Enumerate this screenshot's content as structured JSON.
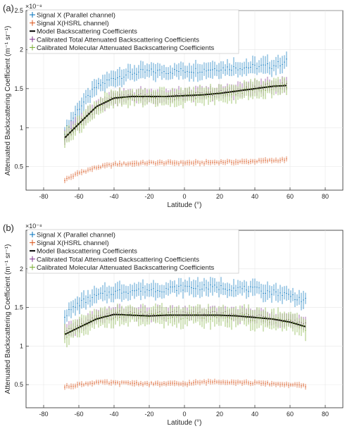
{
  "chart_data": [
    {
      "panel_label": "(a)",
      "type": "line",
      "xlabel": "Latitude (°)",
      "ylabel": "Attenuated Backscattering Coefficient (m⁻¹ sr⁻¹)",
      "y_exponent_label": "×10⁻⁸",
      "xlim": [
        -90,
        90
      ],
      "ylim": [
        0.2,
        2.5
      ],
      "x_ticks": [
        -80,
        -60,
        -40,
        -20,
        0,
        20,
        40,
        60,
        80
      ],
      "x_tick_labels": [
        "-80",
        "-60",
        "-40",
        "-20",
        "0",
        "20",
        "40",
        "60",
        "80"
      ],
      "y_ticks": [
        0.5,
        1,
        1.5,
        2,
        2.5
      ],
      "y_tick_labels": [
        "0.5",
        "1",
        "1.5",
        "2",
        "2.5"
      ],
      "grid": true,
      "legend_position": "top-left",
      "x_range": [
        -68,
        58
      ],
      "series": [
        {
          "name": "Signal X (Parallel channel)",
          "style": "errorbar",
          "color": "#0072BD",
          "x": [
            -68,
            -60,
            -50,
            -40,
            -30,
            -20,
            -10,
            0,
            10,
            20,
            30,
            40,
            50,
            58
          ],
          "y": [
            0.95,
            1.25,
            1.52,
            1.64,
            1.7,
            1.72,
            1.72,
            1.73,
            1.74,
            1.76,
            1.77,
            1.78,
            1.79,
            1.85
          ],
          "err": 0.12
        },
        {
          "name": "Signal X(HSRL channel)",
          "style": "errorbar",
          "color": "#D95319",
          "x": [
            -68,
            -60,
            -50,
            -40,
            -30,
            -20,
            -10,
            0,
            10,
            20,
            30,
            40,
            50,
            58
          ],
          "y": [
            0.33,
            0.42,
            0.49,
            0.53,
            0.54,
            0.55,
            0.55,
            0.55,
            0.55,
            0.56,
            0.56,
            0.57,
            0.58,
            0.59
          ],
          "err": 0.04
        },
        {
          "name": "Model Backscattering Coefficients",
          "style": "line",
          "color": "#000000",
          "x": [
            -68,
            -60,
            -50,
            -40,
            -30,
            -20,
            -10,
            0,
            10,
            20,
            30,
            40,
            50,
            58
          ],
          "y": [
            0.87,
            1.05,
            1.27,
            1.38,
            1.4,
            1.4,
            1.4,
            1.41,
            1.42,
            1.44,
            1.47,
            1.5,
            1.53,
            1.54
          ]
        },
        {
          "name": "Calibrated Total Attenuated Backscattering Coefficients",
          "style": "errorbar",
          "color": "#7E2F8E",
          "x": [
            -68,
            -60,
            -50,
            -40,
            -30,
            -20,
            -10,
            0,
            10,
            20,
            30,
            40,
            50,
            58
          ],
          "y": [
            0.89,
            1.06,
            1.28,
            1.39,
            1.41,
            1.41,
            1.41,
            1.42,
            1.43,
            1.45,
            1.48,
            1.51,
            1.54,
            1.55
          ],
          "err": 0.1
        },
        {
          "name": "Calibrated Molecular Attenuated Backscattering Coefficients",
          "style": "errorbar",
          "color": "#77AC30",
          "x": [
            -68,
            -60,
            -50,
            -40,
            -30,
            -20,
            -10,
            0,
            10,
            20,
            30,
            40,
            50,
            58
          ],
          "y": [
            0.87,
            1.04,
            1.26,
            1.37,
            1.39,
            1.39,
            1.39,
            1.4,
            1.41,
            1.43,
            1.46,
            1.49,
            1.52,
            1.53
          ],
          "err": 0.12
        }
      ]
    },
    {
      "panel_label": "(b)",
      "type": "line",
      "xlabel": "Latitude (°)",
      "ylabel": "Attenuated Backscattering Coefficient (m⁻¹ sr⁻¹)",
      "y_exponent_label": "×10⁻⁸",
      "xlim": [
        -90,
        90
      ],
      "ylim": [
        0.2,
        2.5
      ],
      "x_ticks": [
        -80,
        -60,
        -40,
        -20,
        0,
        20,
        40,
        60,
        80
      ],
      "x_tick_labels": [
        "-80",
        "-60",
        "-40",
        "-20",
        "0",
        "20",
        "40",
        "60",
        "80"
      ],
      "y_ticks": [
        0.5,
        1,
        1.5,
        2
      ],
      "y_tick_labels": [
        "0.5",
        "1",
        "1.5",
        "2"
      ],
      "grid": true,
      "legend_position": "top-left",
      "x_range": [
        -68,
        69
      ],
      "series": [
        {
          "name": "Signal X (Parallel channel)",
          "style": "errorbar",
          "color": "#0072BD",
          "x": [
            -68,
            -60,
            -50,
            -40,
            -30,
            -20,
            -10,
            0,
            10,
            20,
            30,
            40,
            50,
            60,
            69
          ],
          "y": [
            1.4,
            1.55,
            1.65,
            1.7,
            1.72,
            1.73,
            1.74,
            1.76,
            1.76,
            1.76,
            1.75,
            1.73,
            1.7,
            1.66,
            1.58
          ],
          "err": 0.12
        },
        {
          "name": "Signal X(HSRL channel)",
          "style": "errorbar",
          "color": "#D95319",
          "x": [
            -68,
            -60,
            -50,
            -40,
            -30,
            -20,
            -10,
            0,
            10,
            20,
            30,
            40,
            50,
            60,
            69
          ],
          "y": [
            0.47,
            0.5,
            0.53,
            0.52,
            0.52,
            0.51,
            0.51,
            0.51,
            0.53,
            0.54,
            0.53,
            0.52,
            0.51,
            0.5,
            0.48
          ],
          "err": 0.04
        },
        {
          "name": "Model Backscattering Coefficients",
          "style": "line",
          "color": "#000000",
          "x": [
            -68,
            -60,
            -50,
            -40,
            -30,
            -20,
            -10,
            0,
            10,
            20,
            30,
            40,
            50,
            60,
            69
          ],
          "y": [
            1.15,
            1.24,
            1.35,
            1.41,
            1.4,
            1.39,
            1.4,
            1.4,
            1.4,
            1.4,
            1.39,
            1.37,
            1.35,
            1.31,
            1.25
          ],
          "err": 0
        },
        {
          "name": "Calibrated Total Attenuated Backscattering Coefficients",
          "style": "errorbar",
          "color": "#7E2F8E",
          "x": [
            -68,
            -60,
            -50,
            -40,
            -30,
            -20,
            -10,
            0,
            10,
            20,
            30,
            40,
            50,
            60,
            69
          ],
          "y": [
            1.17,
            1.26,
            1.37,
            1.43,
            1.42,
            1.41,
            1.42,
            1.42,
            1.42,
            1.42,
            1.41,
            1.39,
            1.37,
            1.33,
            1.27
          ],
          "err": 0.1
        },
        {
          "name": "Calibrated Molecular Attenuated Backscattering Coefficients",
          "style": "errorbar",
          "color": "#77AC30",
          "x": [
            -68,
            -60,
            -50,
            -40,
            -30,
            -20,
            -10,
            0,
            10,
            20,
            30,
            40,
            50,
            60,
            69
          ],
          "y": [
            1.14,
            1.23,
            1.34,
            1.4,
            1.39,
            1.38,
            1.39,
            1.39,
            1.39,
            1.39,
            1.38,
            1.36,
            1.34,
            1.3,
            1.24
          ],
          "err": 0.14
        }
      ]
    }
  ]
}
